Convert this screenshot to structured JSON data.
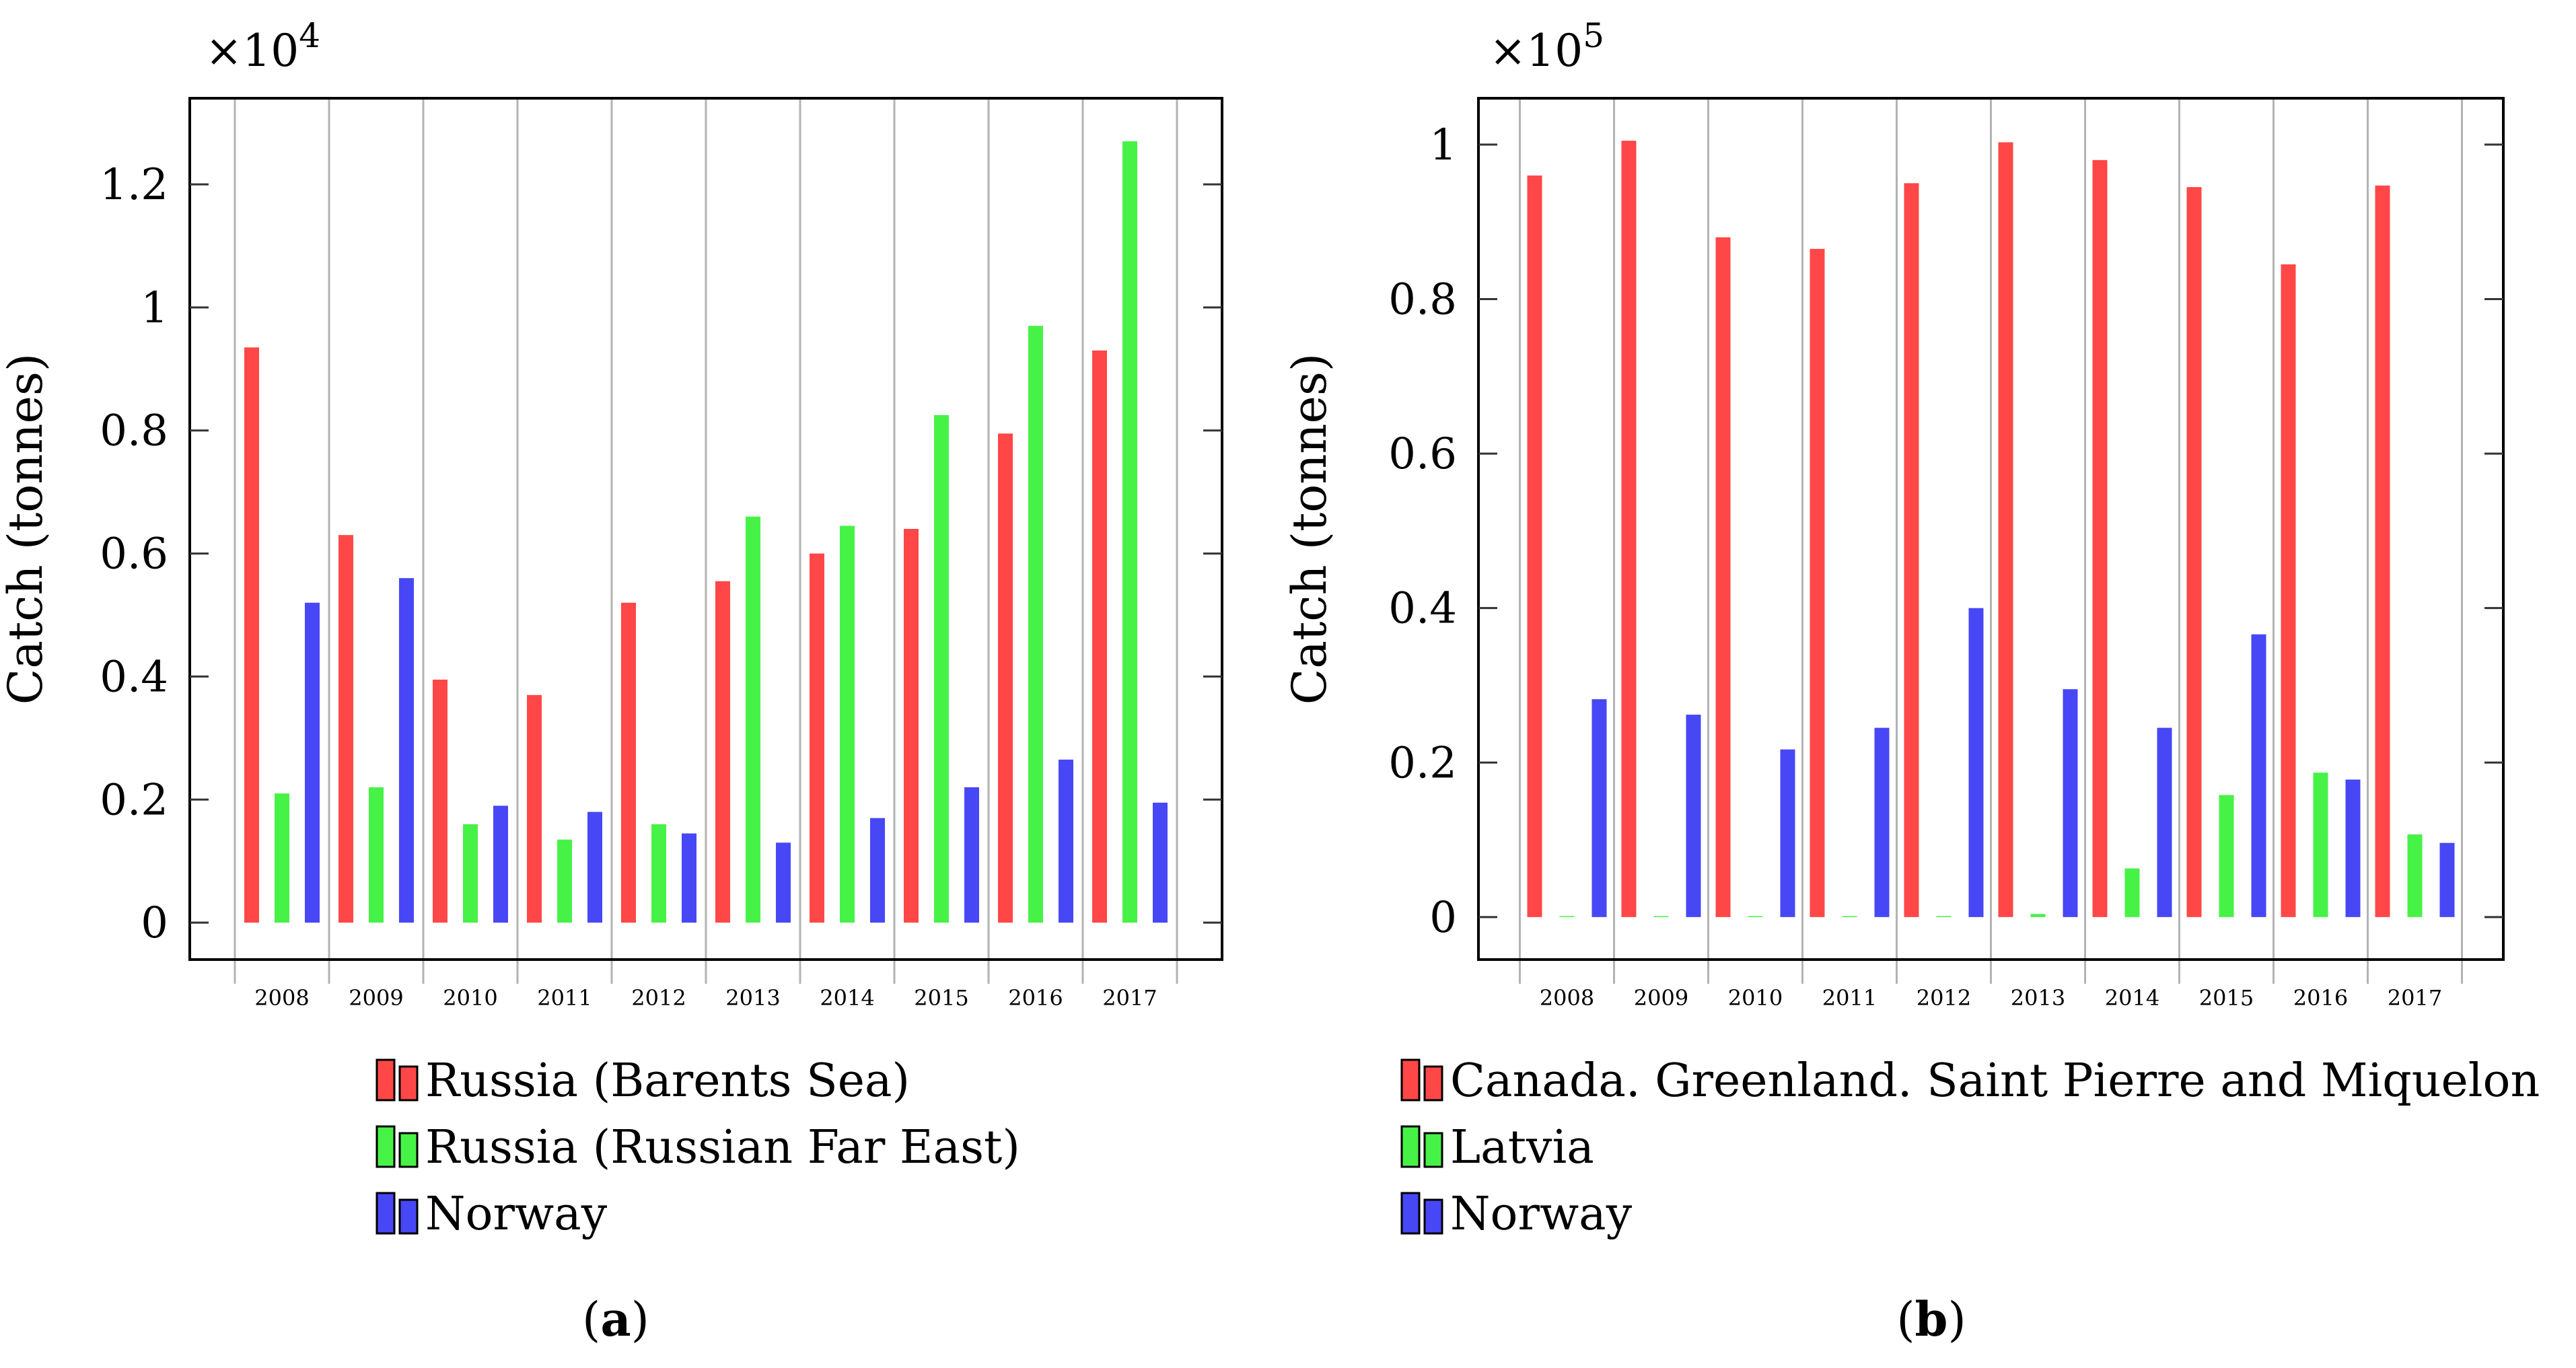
{
  "colors": {
    "red": "#ff4747",
    "green": "#47f247",
    "blue": "#4747f5",
    "grid": "#b3b3b3",
    "axis": "#000000"
  },
  "chart_data": [
    {
      "type": "bar",
      "id": "a",
      "caption_letter": "a",
      "multiplier_base": "×10",
      "multiplier_exp": "4",
      "ylabel": "Catch (tonnes)",
      "xlabel": "",
      "categories": [
        "2008",
        "2009",
        "2010",
        "2011",
        "2012",
        "2013",
        "2014",
        "2015",
        "2016",
        "2017"
      ],
      "ylim": [
        -0.06,
        1.34
      ],
      "yticks": [
        0,
        0.2,
        0.4,
        0.6,
        0.8,
        1,
        1.2
      ],
      "ytick_labels": [
        "0",
        "0.2",
        "0.4",
        "0.6",
        "0.8",
        "1",
        "1.2"
      ],
      "grid": "vertical",
      "series": [
        {
          "name": "Russia (Barents Sea)",
          "color": "red",
          "values": [
            0.935,
            0.63,
            0.395,
            0.37,
            0.52,
            0.555,
            0.6,
            0.64,
            0.795,
            0.93
          ]
        },
        {
          "name": "Russia (Russian Far East)",
          "color": "green",
          "values": [
            0.21,
            0.22,
            0.16,
            0.135,
            0.16,
            0.66,
            0.645,
            0.825,
            0.97,
            1.27
          ]
        },
        {
          "name": "Norway",
          "color": "blue",
          "values": [
            0.52,
            0.56,
            0.19,
            0.18,
            0.145,
            0.13,
            0.17,
            0.22,
            0.265,
            0.195
          ]
        }
      ]
    },
    {
      "type": "bar",
      "id": "b",
      "caption_letter": "b",
      "multiplier_base": "×10",
      "multiplier_exp": "5",
      "ylabel": "Catch (tonnes)",
      "xlabel": "",
      "categories": [
        "2008",
        "2009",
        "2010",
        "2011",
        "2012",
        "2013",
        "2014",
        "2015",
        "2016",
        "2017"
      ],
      "ylim": [
        -0.055,
        1.06
      ],
      "yticks": [
        0,
        0.2,
        0.4,
        0.6,
        0.8,
        1
      ],
      "ytick_labels": [
        "0",
        "0.2",
        "0.4",
        "0.6",
        "0.8",
        "1"
      ],
      "grid": "vertical",
      "series": [
        {
          "name": "Canada. Greenland. Saint Pierre and Miquelon",
          "color": "red",
          "values": [
            0.96,
            1.005,
            0.88,
            0.865,
            0.95,
            1.003,
            0.98,
            0.945,
            0.845,
            0.947
          ]
        },
        {
          "name": "Latvia",
          "color": "green",
          "values": [
            0,
            0,
            0,
            0,
            0.001,
            0.004,
            0.063,
            0.158,
            0.187,
            0.107
          ]
        },
        {
          "name": "Norway",
          "color": "blue",
          "values": [
            0.282,
            0.262,
            0.217,
            0.245,
            0.4,
            0.295,
            0.245,
            0.366,
            0.178,
            0.096
          ]
        }
      ]
    }
  ]
}
